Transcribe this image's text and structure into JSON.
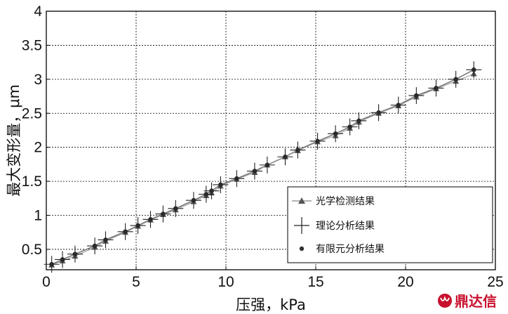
{
  "chart_data": {
    "type": "line",
    "title": "",
    "xlabel": "压强，kPa",
    "ylabel": "最大变形量，μm",
    "xlim": [
      0,
      25
    ],
    "ylim": [
      0.2,
      4
    ],
    "grid": true,
    "x_ticks": [
      "0",
      "5",
      "10",
      "15",
      "20",
      "25"
    ],
    "y_ticks": [
      "0.5",
      "1",
      "1.5",
      "2",
      "2.5",
      "3",
      "3.5",
      "4"
    ],
    "legend_position": "bottom-right",
    "legend": [
      "光学检测结果",
      "理论分析结果",
      "有限元分析结果"
    ],
    "series": [
      {
        "name": "光学检测结果",
        "marker": "triangle",
        "x": [
          0.3,
          0.9,
          1.6,
          2.7,
          3.3,
          4.4,
          5.1,
          5.8,
          6.5,
          7.2,
          8.2,
          8.9,
          9.2,
          9.7,
          10.6,
          11.6,
          12.3,
          13.3,
          14.0,
          15.1,
          16.1,
          16.9,
          17.4,
          18.5,
          19.6,
          20.6,
          21.7,
          22.8,
          23.8
        ],
        "y": [
          0.27,
          0.33,
          0.4,
          0.53,
          0.62,
          0.75,
          0.84,
          0.93,
          1.01,
          1.08,
          1.2,
          1.29,
          1.33,
          1.43,
          1.53,
          1.63,
          1.74,
          1.86,
          1.95,
          2.08,
          2.17,
          2.28,
          2.37,
          2.5,
          2.61,
          2.74,
          2.86,
          2.97,
          3.08
        ]
      },
      {
        "name": "理论分析结果",
        "marker": "plus",
        "x": [
          0.3,
          0.9,
          1.6,
          2.7,
          3.3,
          4.4,
          5.1,
          5.8,
          6.5,
          7.2,
          8.2,
          8.9,
          9.2,
          9.7,
          10.6,
          11.6,
          12.3,
          13.3,
          14.0,
          15.1,
          16.1,
          16.9,
          17.4,
          18.5,
          19.6,
          20.6,
          21.7,
          22.8,
          23.8
        ],
        "y": [
          0.28,
          0.35,
          0.43,
          0.55,
          0.64,
          0.76,
          0.85,
          0.94,
          1.02,
          1.1,
          1.22,
          1.31,
          1.36,
          1.45,
          1.54,
          1.65,
          1.74,
          1.86,
          1.96,
          2.09,
          2.2,
          2.3,
          2.39,
          2.51,
          2.62,
          2.76,
          2.87,
          3.0,
          3.14
        ]
      },
      {
        "name": "有限元分析结果",
        "marker": "dot",
        "x": [
          0.3,
          0.9,
          1.6,
          2.7,
          3.3,
          4.4,
          5.1,
          5.8,
          6.5,
          7.2,
          8.2,
          8.9,
          9.2,
          9.7,
          10.6,
          11.6,
          12.3,
          13.3,
          14.0,
          15.1,
          16.1,
          16.9,
          17.4,
          18.5,
          19.6,
          20.6,
          21.7,
          22.8,
          23.8
        ],
        "y": [
          0.28,
          0.35,
          0.43,
          0.55,
          0.64,
          0.76,
          0.85,
          0.94,
          1.02,
          1.1,
          1.22,
          1.31,
          1.36,
          1.45,
          1.54,
          1.65,
          1.74,
          1.86,
          1.96,
          2.09,
          2.2,
          2.3,
          2.39,
          2.51,
          2.62,
          2.76,
          2.87,
          3.0,
          3.14
        ]
      }
    ]
  },
  "watermark": {
    "text": "鼎达信"
  }
}
